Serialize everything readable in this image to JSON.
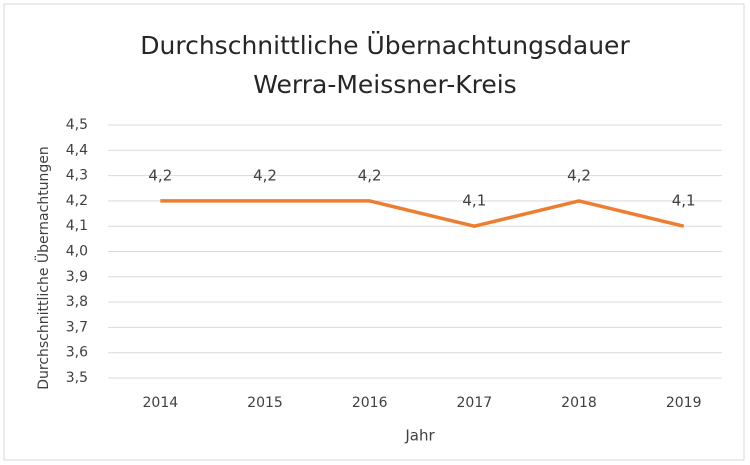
{
  "chart_data": {
    "type": "line",
    "title": [
      "Durchschnittliche Übernachtungsdauer",
      "Werra-Meissner-Kreis"
    ],
    "x_label": "Jahr",
    "y_label": "Durchschnittliche Übernachtungen",
    "categories": [
      "2014",
      "2015",
      "2016",
      "2017",
      "2018",
      "2019"
    ],
    "values": [
      4.2,
      4.2,
      4.2,
      4.1,
      4.2,
      4.1
    ],
    "value_labels": [
      "4,2",
      "4,2",
      "4,2",
      "4,1",
      "4,2",
      "4,1"
    ],
    "color": "#ed7d31",
    "ylim": [
      3.5,
      4.5
    ],
    "yticks": [
      {
        "value": 3.5,
        "label": "3,5"
      },
      {
        "value": 3.6,
        "label": "3,6"
      },
      {
        "value": 3.7,
        "label": "3,7"
      },
      {
        "value": 3.8,
        "label": "3,8"
      },
      {
        "value": 3.9,
        "label": "3,9"
      },
      {
        "value": 4.0,
        "label": "4,0"
      },
      {
        "value": 4.1,
        "label": "4,1"
      },
      {
        "value": 4.2,
        "label": "4,2"
      },
      {
        "value": 4.3,
        "label": "4,3"
      },
      {
        "value": 4.4,
        "label": "4,4"
      },
      {
        "value": 4.5,
        "label": "4,5"
      }
    ],
    "grid": true
  }
}
